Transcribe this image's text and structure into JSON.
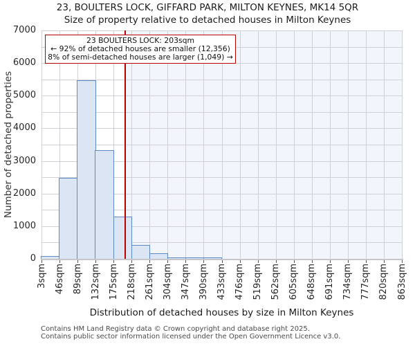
{
  "footer": {
    "line1": "Contains HM Land Registry data © Crown copyright and database right 2025.",
    "line2": "Contains public sector information licensed under the Open Government Licence v3.0."
  },
  "chart_data": {
    "type": "bar",
    "title": "23, BOULTERS LOCK, GIFFARD PARK, MILTON KEYNES, MK14 5QR",
    "subtitle": "Size of property relative to detached houses in Milton Keynes",
    "xlabel": "Distribution of detached houses by size in Milton Keynes",
    "ylabel": "Number of detached properties",
    "ylim": [
      0,
      7000
    ],
    "ytick_step": 1000,
    "grid_step": 500,
    "grid": true,
    "legend": false,
    "categories": [
      "3sqm",
      "46sqm",
      "89sqm",
      "132sqm",
      "175sqm",
      "218sqm",
      "261sqm",
      "304sqm",
      "347sqm",
      "390sqm",
      "433sqm",
      "476sqm",
      "519sqm",
      "562sqm",
      "605sqm",
      "648sqm",
      "691sqm",
      "734sqm",
      "777sqm",
      "820sqm",
      "863sqm"
    ],
    "bin_width_sqm": 43,
    "values": [
      90,
      2490,
      5470,
      3330,
      1290,
      430,
      170,
      45,
      20,
      15,
      0,
      0,
      0,
      0,
      0,
      0,
      0,
      0,
      0,
      0
    ],
    "marker": {
      "value_sqm": 203,
      "shaded_region": "right-of-marker"
    },
    "annotation": {
      "line1": "23 BOULTERS LOCK: 203sqm",
      "line2": "← 92% of detached houses are smaller (12,356)",
      "line3": "8% of semi-detached houses are larger (1,049) →"
    },
    "colors": {
      "bar_fill": "#dbe5f3",
      "bar_edge": "#5b8ac4",
      "marker": "#b70000",
      "annotation_border": "#b70000",
      "shade": "#f2f5fc",
      "grid": "#cfd1d6",
      "axis": "#c6c6cb",
      "tick": "#555555"
    }
  }
}
